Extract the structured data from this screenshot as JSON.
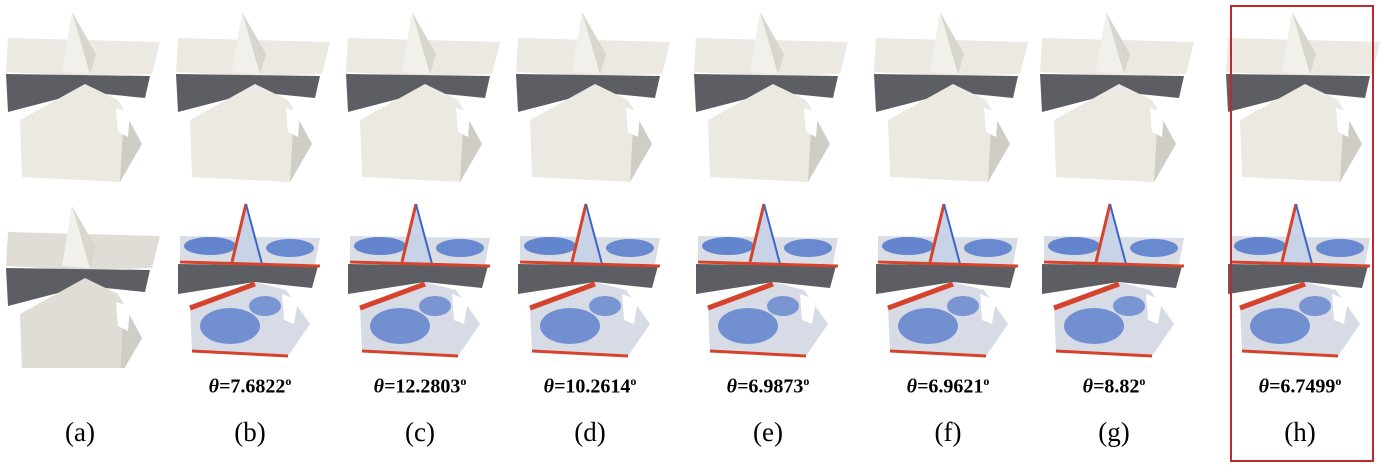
{
  "figure": {
    "panels": [
      {
        "label": "(a)",
        "theta_value": "",
        "theta_unit": "",
        "view": "noisy-input"
      },
      {
        "label": "(b)",
        "theta_value": "7.6822",
        "theta_unit": "o",
        "view": "denoised"
      },
      {
        "label": "(c)",
        "theta_value": "12.2803",
        "theta_unit": "o",
        "view": "denoised"
      },
      {
        "label": "(d)",
        "theta_value": "10.2614",
        "theta_unit": "o",
        "view": "denoised"
      },
      {
        "label": "(e)",
        "theta_value": "6.9873",
        "theta_unit": "o",
        "view": "denoised"
      },
      {
        "label": "(f)",
        "theta_value": "6.9621",
        "theta_unit": "o",
        "view": "denoised"
      },
      {
        "label": "(g)",
        "theta_value": "8.82",
        "theta_unit": "o",
        "view": "denoised"
      },
      {
        "label": "(h)",
        "theta_value": "6.7499",
        "theta_unit": "o",
        "view": "denoised"
      }
    ],
    "theta_symbol": "θ=",
    "highlighted_panel": "(h)",
    "colors": {
      "surface": "#ebe9e2",
      "surface_shadow": "#5d5e63",
      "error_low": "#3a67c6",
      "error_high": "#d6432c",
      "highlight_border": "#c0282d"
    }
  }
}
